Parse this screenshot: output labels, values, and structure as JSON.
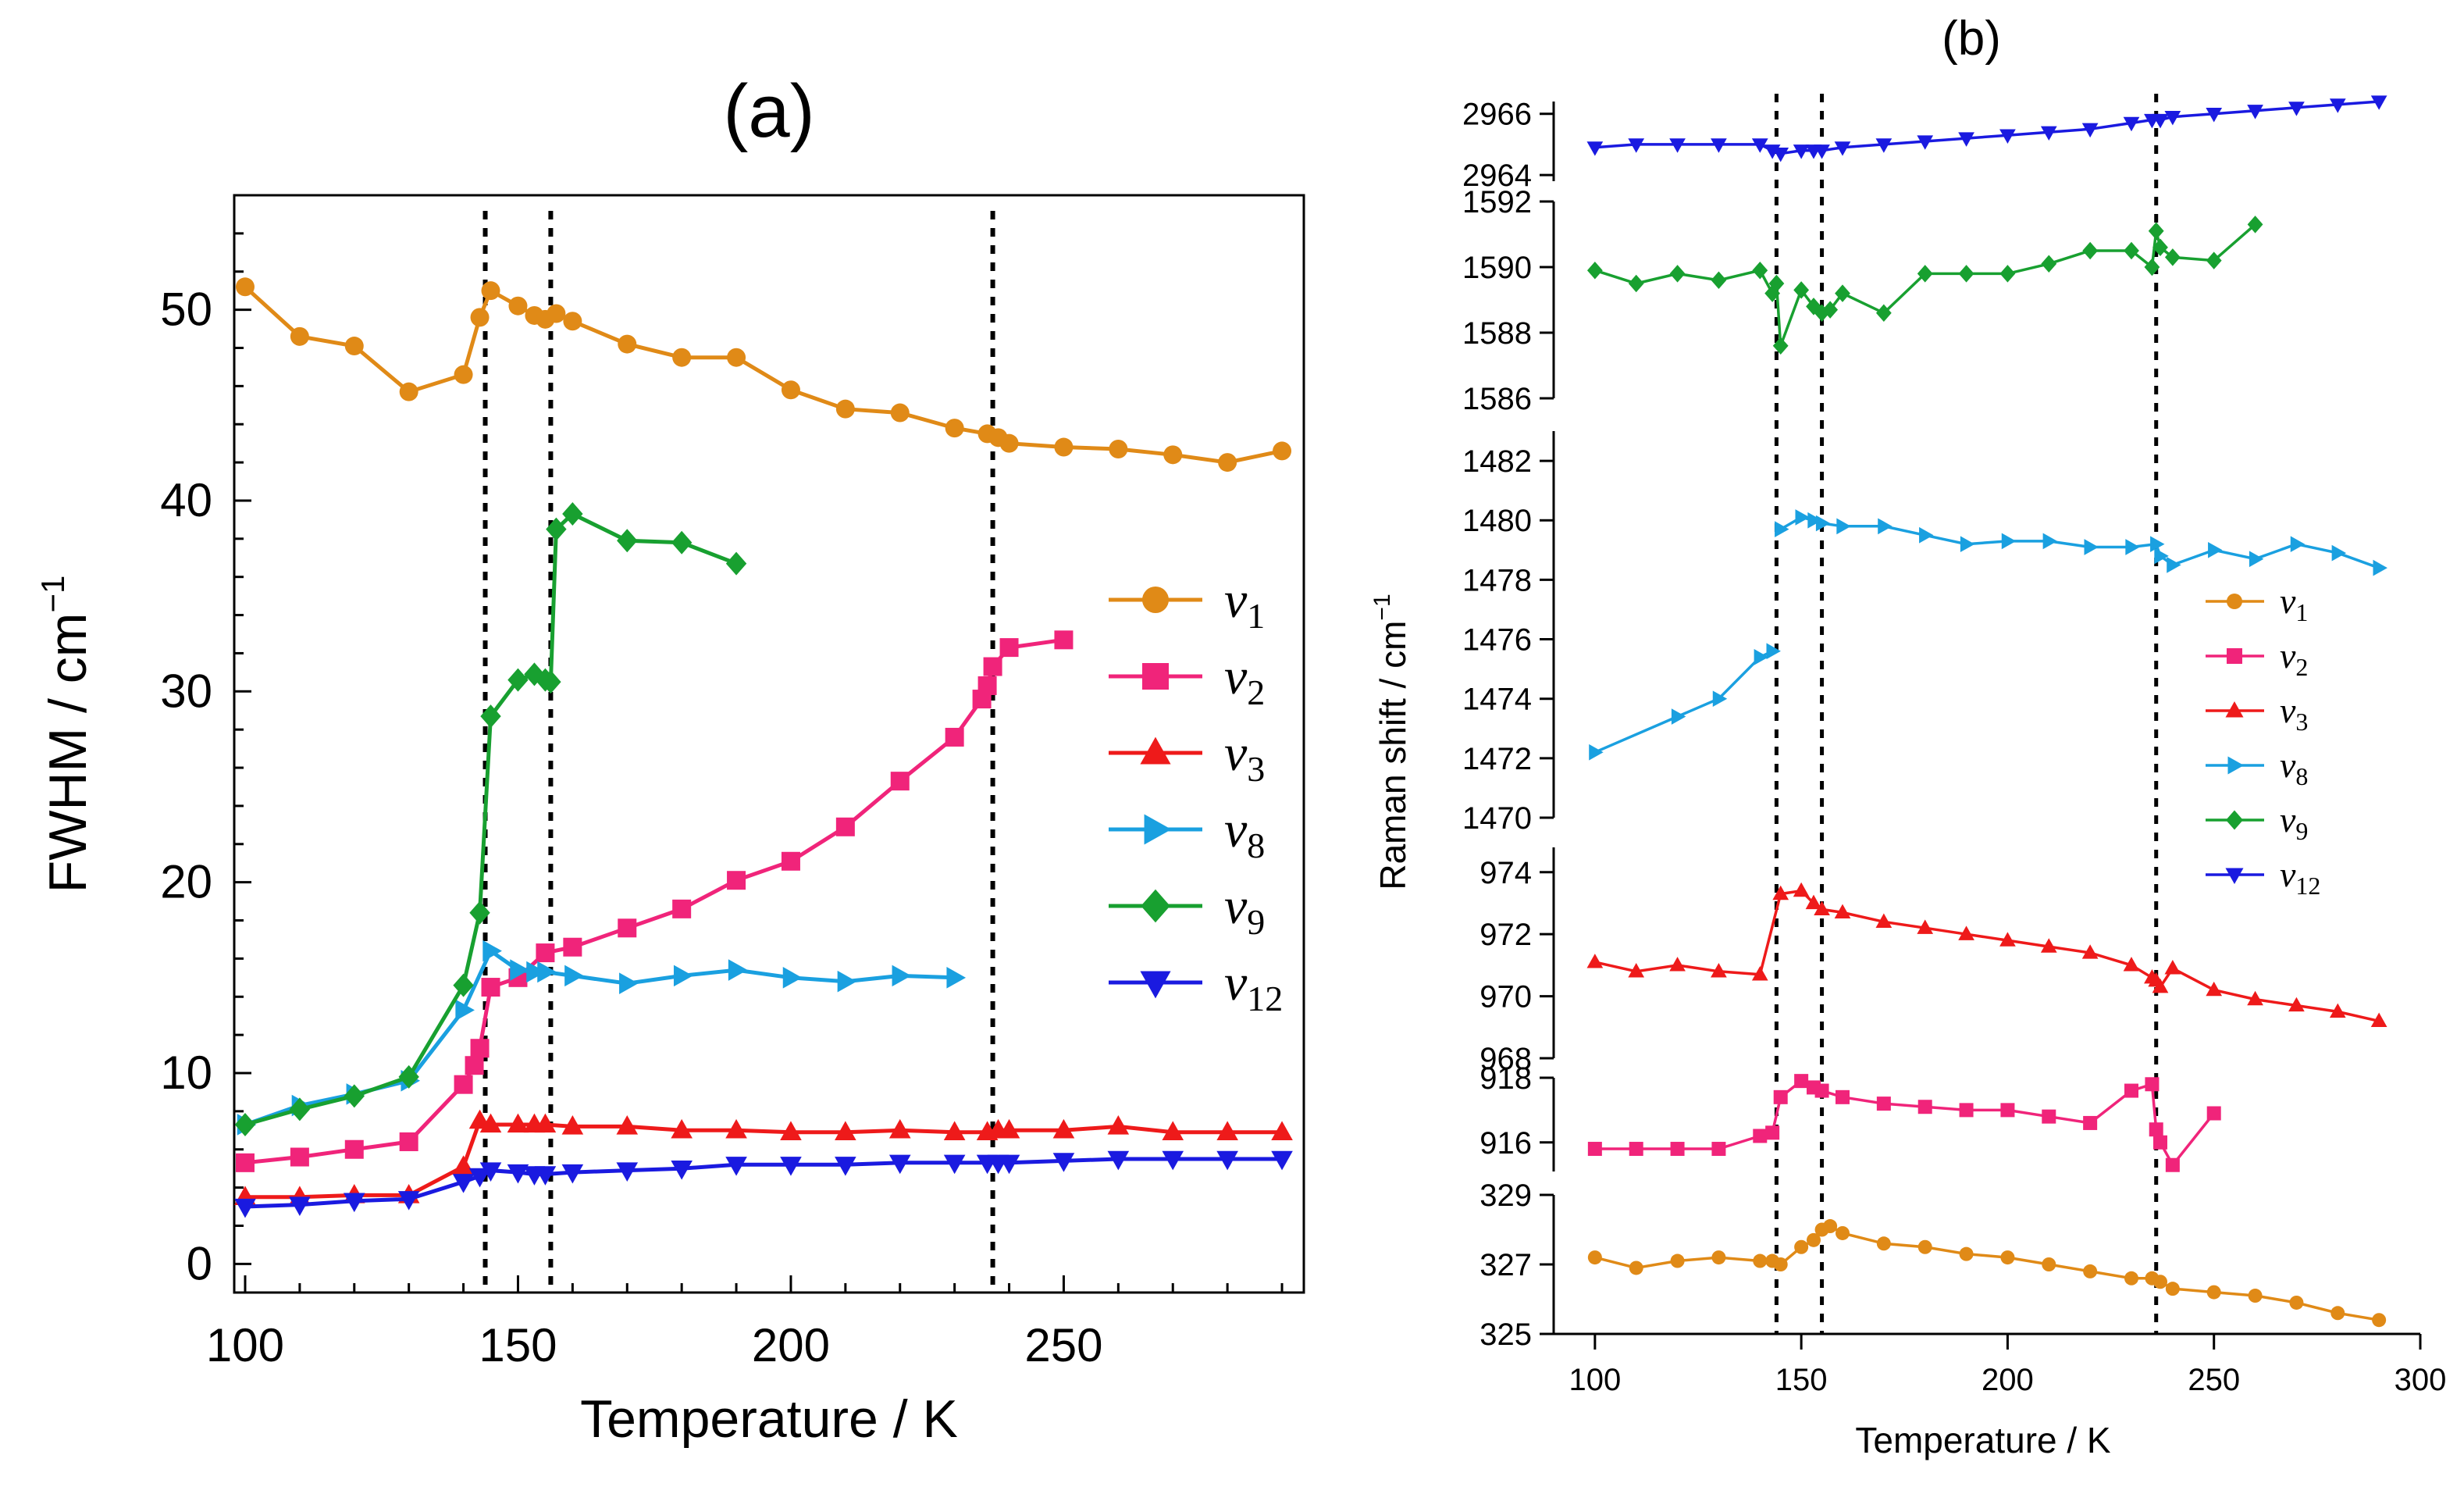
{
  "chart_data": [
    {
      "type": "line",
      "panel_label": "(a)",
      "xlabel": "Temperature / K",
      "ylabel": "FWHM / cm",
      "ylabel_sup": "−1",
      "xlim": [
        98,
        294
      ],
      "ylim": [
        -1.5,
        56
      ],
      "xticks": [
        100,
        150,
        200,
        250
      ],
      "yticks": [
        0,
        10,
        20,
        30,
        40,
        50
      ],
      "vlines": [
        144,
        156,
        237
      ],
      "series": [
        {
          "name": "v",
          "sub": "1",
          "color": "#e08a17",
          "marker": "circle",
          "x": [
            100,
            110,
            120,
            130,
            140,
            143,
            145,
            150,
            153,
            155,
            157,
            160,
            170,
            180,
            190,
            200,
            210,
            220,
            230,
            236,
            238,
            240,
            250,
            260,
            270,
            280,
            290
          ],
          "y": [
            51.2,
            48.6,
            48.1,
            45.7,
            46.6,
            49.6,
            51.0,
            50.2,
            49.7,
            49.5,
            49.8,
            49.4,
            48.2,
            47.5,
            47.5,
            45.8,
            44.8,
            44.6,
            43.8,
            43.5,
            43.3,
            43.0,
            42.8,
            42.7,
            42.4,
            42.0,
            42.6
          ]
        },
        {
          "name": "v",
          "sub": "2",
          "color": "#f0247a",
          "marker": "square",
          "x": [
            100,
            110,
            120,
            130,
            140,
            142,
            143,
            145,
            150,
            155,
            160,
            170,
            180,
            190,
            200,
            210,
            220,
            230,
            235,
            236,
            237,
            240,
            250
          ],
          "y": [
            5.3,
            5.6,
            6.0,
            6.4,
            9.4,
            10.4,
            11.3,
            14.5,
            15.0,
            16.3,
            16.6,
            17.6,
            18.6,
            20.1,
            21.1,
            22.9,
            25.3,
            27.6,
            29.6,
            30.3,
            31.3,
            32.3,
            32.7
          ]
        },
        {
          "name": "v",
          "sub": "3",
          "color": "#ee1a1a",
          "marker": "triangle-up",
          "x": [
            100,
            110,
            120,
            130,
            140,
            143,
            145,
            150,
            153,
            155,
            160,
            170,
            180,
            190,
            200,
            210,
            220,
            230,
            236,
            238,
            240,
            250,
            260,
            270,
            280,
            290
          ],
          "y": [
            3.5,
            3.5,
            3.6,
            3.6,
            5.1,
            7.5,
            7.3,
            7.3,
            7.3,
            7.3,
            7.2,
            7.2,
            7.0,
            7.0,
            6.9,
            6.9,
            7.0,
            6.9,
            6.9,
            7.0,
            7.0,
            7.0,
            7.2,
            6.9,
            6.9,
            6.9
          ]
        },
        {
          "name": "v",
          "sub": "8",
          "color": "#1aa0e0",
          "marker": "triangle-right",
          "x": [
            100,
            110,
            120,
            130,
            140,
            145,
            150,
            153,
            155,
            160,
            170,
            180,
            190,
            200,
            210,
            220,
            230
          ],
          "y": [
            7.3,
            8.3,
            8.9,
            9.6,
            13.3,
            16.4,
            15.4,
            15.3,
            15.3,
            15.1,
            14.7,
            15.1,
            15.4,
            15.0,
            14.8,
            15.1,
            15.0
          ]
        },
        {
          "name": "v",
          "sub": "9",
          "color": "#18a030",
          "marker": "diamond",
          "x": [
            100,
            110,
            120,
            130,
            140,
            143,
            145,
            150,
            153,
            155,
            156,
            157,
            160,
            170,
            180,
            190
          ],
          "y": [
            7.3,
            8.1,
            8.8,
            9.8,
            14.6,
            18.4,
            28.7,
            30.6,
            30.9,
            30.6,
            30.5,
            38.5,
            39.3,
            37.9,
            37.8,
            36.7
          ]
        },
        {
          "name": "v",
          "sub": "12",
          "color": "#1a1ae0",
          "marker": "triangle-down",
          "x": [
            100,
            110,
            120,
            130,
            140,
            143,
            145,
            150,
            153,
            155,
            160,
            170,
            180,
            190,
            200,
            210,
            220,
            230,
            236,
            238,
            240,
            250,
            260,
            270,
            280,
            290
          ],
          "y": [
            3.0,
            3.1,
            3.3,
            3.4,
            4.3,
            4.6,
            4.9,
            4.8,
            4.7,
            4.7,
            4.8,
            4.9,
            5.0,
            5.2,
            5.2,
            5.2,
            5.3,
            5.3,
            5.3,
            5.3,
            5.3,
            5.4,
            5.5,
            5.5,
            5.5,
            5.5
          ]
        }
      ]
    },
    {
      "type": "line",
      "panel_label": "(b)",
      "xlabel": "Temperature / K",
      "ylabel": "Raman shift / cm",
      "ylabel_sup": "−1",
      "xlim": [
        90,
        300
      ],
      "xticks": [
        100,
        150,
        200,
        250,
        300
      ],
      "vlines": [
        144,
        155,
        236
      ],
      "subpanels": [
        {
          "name": "v12 panel",
          "ylim": [
            2963.8,
            2966.4
          ],
          "yticks": [
            2964,
            2966
          ]
        },
        {
          "name": "v9 panel",
          "ylim": [
            1586,
            1592
          ],
          "yticks": [
            1586,
            1588,
            1590,
            1592
          ]
        },
        {
          "name": "v8 panel",
          "ylim": [
            1470,
            1483
          ],
          "yticks": [
            1470,
            1472,
            1474,
            1476,
            1478,
            1480,
            1482
          ]
        },
        {
          "name": "v3 panel",
          "ylim": [
            968,
            974.8
          ],
          "yticks": [
            968,
            970,
            972,
            974
          ]
        },
        {
          "name": "v2 panel",
          "ylim": [
            915.1,
            918
          ],
          "yticks": [
            916,
            918
          ]
        },
        {
          "name": "v1 panel",
          "ylim": [
            325,
            329
          ],
          "yticks": [
            325,
            327,
            329
          ]
        }
      ],
      "series": [
        {
          "name": "v",
          "sub": "1",
          "color": "#e08a17",
          "marker": "circle",
          "subpanel": 5,
          "x": [
            100,
            110,
            120,
            130,
            140,
            143,
            145,
            150,
            153,
            155,
            157,
            160,
            170,
            180,
            190,
            200,
            210,
            220,
            230,
            235,
            237,
            240,
            250,
            260,
            270,
            280,
            290
          ],
          "y": [
            327.2,
            326.9,
            327.1,
            327.2,
            327.1,
            327.1,
            327.0,
            327.5,
            327.7,
            328.0,
            328.1,
            327.9,
            327.6,
            327.5,
            327.3,
            327.2,
            327.0,
            326.8,
            326.6,
            326.6,
            326.5,
            326.3,
            326.2,
            326.1,
            325.9,
            325.6,
            325.4
          ]
        },
        {
          "name": "v",
          "sub": "2",
          "color": "#f0247a",
          "marker": "square",
          "subpanel": 4,
          "x": [
            100,
            110,
            120,
            130,
            140,
            143,
            145,
            150,
            153,
            155,
            160,
            170,
            180,
            190,
            200,
            210,
            220,
            230,
            235,
            236,
            237,
            240,
            250
          ],
          "y": [
            915.8,
            915.8,
            915.8,
            915.8,
            916.2,
            916.3,
            917.4,
            917.9,
            917.7,
            917.6,
            917.4,
            917.2,
            917.1,
            917.0,
            917.0,
            916.8,
            916.6,
            917.6,
            917.8,
            916.4,
            916.0,
            915.3,
            916.9
          ]
        },
        {
          "name": "v",
          "sub": "3",
          "color": "#ee1a1a",
          "marker": "triangle-up",
          "subpanel": 3,
          "x": [
            100,
            110,
            120,
            130,
            140,
            145,
            150,
            153,
            155,
            160,
            170,
            180,
            190,
            200,
            210,
            220,
            230,
            235,
            236,
            237,
            240,
            250,
            260,
            270,
            280,
            290
          ],
          "y": [
            971.1,
            970.8,
            971.0,
            970.8,
            970.7,
            973.3,
            973.4,
            973.0,
            972.8,
            972.7,
            972.4,
            972.2,
            972.0,
            971.8,
            971.6,
            971.4,
            971.0,
            970.6,
            970.5,
            970.3,
            970.9,
            970.2,
            969.9,
            969.7,
            969.5,
            969.2
          ]
        },
        {
          "name": "v",
          "sub": "8",
          "color": "#1aa0e0",
          "marker": "triangle-right",
          "subpanel": 2,
          "x": [
            100,
            120,
            130,
            140,
            143,
            145,
            150,
            153,
            155,
            160,
            170,
            180,
            190,
            200,
            210,
            220,
            230,
            236,
            237,
            240,
            250,
            260,
            270,
            280,
            290
          ],
          "y": [
            1472.2,
            1473.4,
            1474.0,
            1475.4,
            1475.6,
            1479.7,
            1480.1,
            1480.0,
            1479.9,
            1479.8,
            1479.8,
            1479.5,
            1479.2,
            1479.3,
            1479.3,
            1479.1,
            1479.1,
            1479.2,
            1478.8,
            1478.5,
            1479.0,
            1478.7,
            1479.2,
            1478.9,
            1478.4
          ]
        },
        {
          "name": "v",
          "sub": "9",
          "color": "#18a030",
          "marker": "diamond",
          "subpanel": 1,
          "x": [
            100,
            110,
            120,
            130,
            140,
            143,
            144,
            145,
            150,
            153,
            155,
            157,
            160,
            170,
            180,
            190,
            200,
            210,
            220,
            230,
            235,
            236,
            237,
            240,
            250,
            260
          ],
          "y": [
            1589.9,
            1589.5,
            1589.8,
            1589.6,
            1589.9,
            1589.2,
            1589.5,
            1587.6,
            1589.3,
            1588.8,
            1588.6,
            1588.7,
            1589.2,
            1588.6,
            1589.8,
            1589.8,
            1589.8,
            1590.1,
            1590.5,
            1590.5,
            1590.0,
            1591.1,
            1590.6,
            1590.3,
            1590.2,
            1591.3
          ]
        },
        {
          "name": "v",
          "sub": "12",
          "color": "#1a1ae0",
          "marker": "triangle-down",
          "subpanel": 0,
          "x": [
            100,
            110,
            120,
            130,
            140,
            143,
            145,
            150,
            153,
            155,
            160,
            170,
            180,
            190,
            200,
            210,
            220,
            230,
            235,
            237,
            240,
            250,
            260,
            270,
            280,
            290
          ],
          "y": [
            2964.9,
            2965.0,
            2965.0,
            2965.0,
            2965.0,
            2964.8,
            2964.7,
            2964.8,
            2964.8,
            2964.8,
            2964.9,
            2965.0,
            2965.1,
            2965.2,
            2965.3,
            2965.4,
            2965.5,
            2965.7,
            2965.8,
            2965.8,
            2965.9,
            2966.0,
            2966.1,
            2966.2,
            2966.3,
            2966.4
          ]
        }
      ]
    }
  ]
}
